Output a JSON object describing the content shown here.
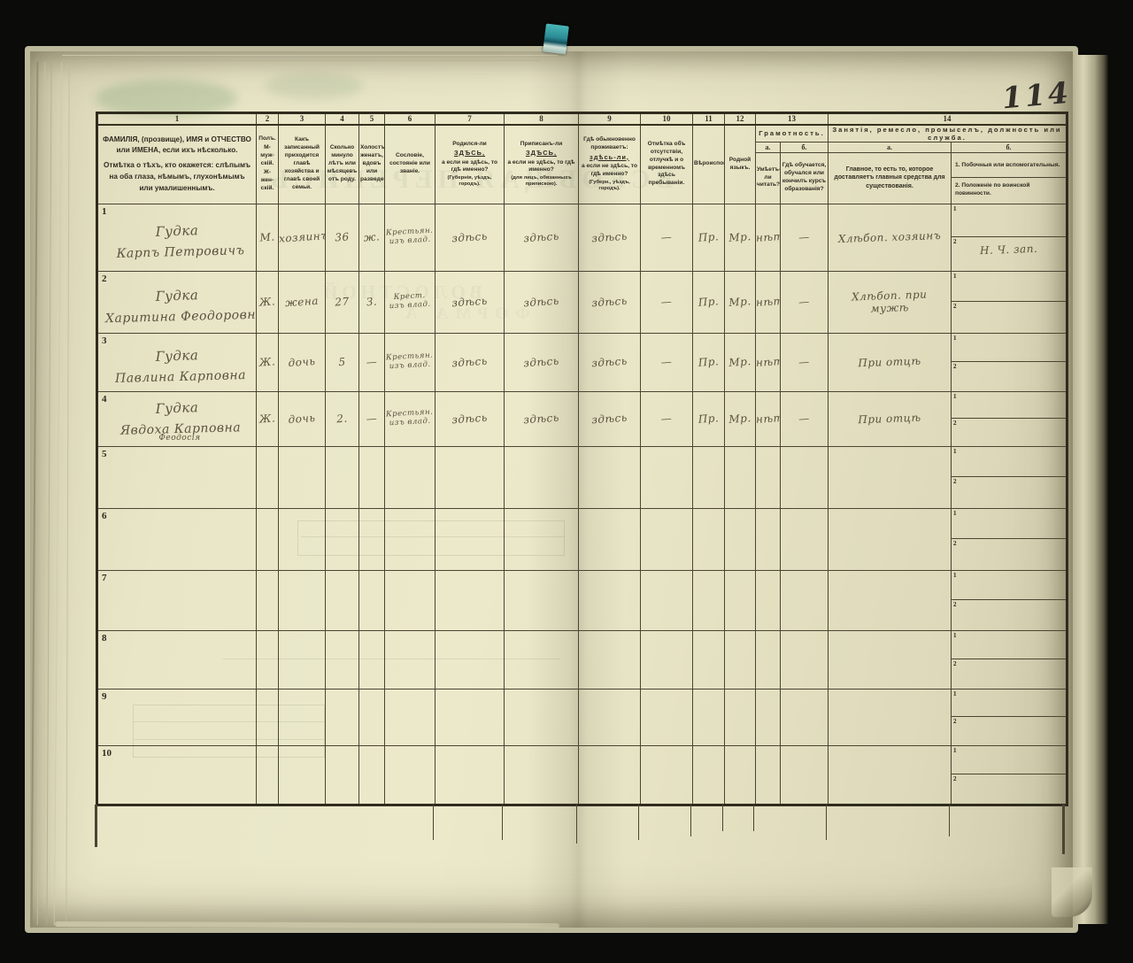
{
  "page": {
    "number": "114"
  },
  "bleedthrough": {
    "title": "ВСЕОБЩАЯ ПЕРЕПИСЬ",
    "line2": "ВОЛОСТНОЙ",
    "line3": "ФОРМА А"
  },
  "table": {
    "nums": [
      "1",
      "2",
      "3",
      "4",
      "5",
      "6",
      "7",
      "8",
      "9",
      "10",
      "11",
      "12",
      "13",
      "14"
    ],
    "subnum1": "1",
    "subnum2": "2",
    "hdr": {
      "c1_p1": "ФАМИЛІЯ, (прозвище), ИМЯ и ОТЧЕСТВО или ИМЕНА, если ихъ нѣсколько.",
      "c1_p2": "Отмѣтка о тѣхъ, кто окажется: слѣпымъ на оба глаза, нѣмымъ, глухонѣмымъ или умалишеннымъ.",
      "c2_1": "Полъ.",
      "c2_2": "М-муж-скій.",
      "c2_3": "Ж-жен-скій.",
      "c3": "Какъ записанный приходится главѣ хозяйства и главѣ своей семьи.",
      "c4": "Сколько минуло лѣтъ или мѣсяцевъ отъ роду.",
      "c5": "Холостъ, женатъ, вдовъ или разведенъ.",
      "c6": "Сословіе, состояніе или званіе.",
      "c7_pre": "Родился-ли",
      "c7_em": "ЗДѢСЬ,",
      "c7_mid": "а если не здѣсь, то гдѣ именно?",
      "c7_note": "(Губернія, уѣздъ, городъ).",
      "c8_pre": "Приписанъ-ли",
      "c8_em": "ЗДѢСЬ,",
      "c8_mid": "а если не здѣсь, то гдѣ именно?",
      "c8_note": "(для лицъ, обязанныхъ припискою).",
      "c9_pre": "Гдѣ обыкновенно проживаетъ:",
      "c9_em": "здѣсь-ли,",
      "c9_mid": "а если не здѣсь, то гдѣ именно?",
      "c9_note": "(Губерн., уѣздъ, городъ).",
      "c10": "Отмѣтка объ отсутствіи, отлучкѣ и о временномъ здѣсь пребываніи.",
      "c11": "Вѣроисповѣданіе.",
      "c12": "Родной языкъ.",
      "c13": "Грамотность.",
      "c13a_l": "а.",
      "c13b_l": "б.",
      "c13a": "Умѣетъ-ли читать?",
      "c13b": "Гдѣ обучается, обучался или кончилъ курсъ образованія?",
      "c14": "Занятія, ремесло, промыселъ, должность или служба.",
      "c14a_l": "а.",
      "c14b_l": "б.",
      "c14a": "Главное, то есть то, которое доставляетъ главныя средства для существованія.",
      "c14b_1": "1. Побочныя или вспомогательныя.",
      "c14b_2": "2. Положеніе по воинской повинности."
    },
    "rows": [
      {
        "n": "1",
        "surname": "Гудка",
        "name": "Карпъ Петровичъ",
        "name2": "",
        "sex": "М.",
        "relation": "хозяинъ",
        "age": "36",
        "marital": "ж.",
        "estate": "Крестьян. изъ влад.",
        "born": "здѣсь",
        "registered": "здѣсь",
        "resides": "здѣсь",
        "absence": "—",
        "religion": "Пр.",
        "language": "Мр.",
        "reads": "нѣт.",
        "educated": "—",
        "occupation": "Хлѣбоп. хозяинъ",
        "side1": "",
        "side2": "Н. Ч. зап."
      },
      {
        "n": "2",
        "surname": "Гудка",
        "name": "Харитина Феодоровна",
        "name2": "",
        "sex": "Ж.",
        "relation": "жена",
        "age": "27",
        "marital": "З.",
        "estate": "Крест. изъ влад.",
        "born": "здѣсь",
        "registered": "здѣсь",
        "resides": "здѣсь",
        "absence": "—",
        "religion": "Пр.",
        "language": "Мр.",
        "reads": "нѣт.",
        "educated": "—",
        "occupation": "Хлѣбоп. при мужѣ",
        "side1": "",
        "side2": ""
      },
      {
        "n": "3",
        "surname": "Гудка",
        "name": "Павлина Карповна",
        "name2": "",
        "sex": "Ж.",
        "relation": "дочь",
        "age": "5",
        "marital": "—",
        "estate": "Крестьян. изъ влад.",
        "born": "здѣсь",
        "registered": "здѣсь",
        "resides": "здѣсь",
        "absence": "—",
        "religion": "Пр.",
        "language": "Мр.",
        "reads": "нѣт.",
        "educated": "—",
        "occupation": "При отцѣ",
        "side1": "",
        "side2": ""
      },
      {
        "n": "4",
        "surname": "Гудка",
        "name": "Явдоха Карповна",
        "name2": "Феодосія",
        "sex": "Ж.",
        "relation": "дочь",
        "age": "2.",
        "marital": "—",
        "estate": "Крестьян. изъ влад.",
        "born": "здѣсь",
        "registered": "здѣсь",
        "resides": "здѣсь",
        "absence": "—",
        "religion": "Пр.",
        "language": "Мр.",
        "reads": "нѣт.",
        "educated": "—",
        "occupation": "При отцѣ",
        "side1": "",
        "side2": ""
      },
      {
        "n": "5",
        "surname": "",
        "name": "",
        "name2": "",
        "sex": "",
        "relation": "",
        "age": "",
        "marital": "",
        "estate": "",
        "born": "",
        "registered": "",
        "resides": "",
        "absence": "",
        "religion": "",
        "language": "",
        "reads": "",
        "educated": "",
        "occupation": "",
        "side1": "",
        "side2": ""
      },
      {
        "n": "6",
        "surname": "",
        "name": "",
        "name2": "",
        "sex": "",
        "relation": "",
        "age": "",
        "marital": "",
        "estate": "",
        "born": "",
        "registered": "",
        "resides": "",
        "absence": "",
        "religion": "",
        "language": "",
        "reads": "",
        "educated": "",
        "occupation": "",
        "side1": "",
        "side2": ""
      },
      {
        "n": "7",
        "surname": "",
        "name": "",
        "name2": "",
        "sex": "",
        "relation": "",
        "age": "",
        "marital": "",
        "estate": "",
        "born": "",
        "registered": "",
        "resides": "",
        "absence": "",
        "religion": "",
        "language": "",
        "reads": "",
        "educated": "",
        "occupation": "",
        "side1": "",
        "side2": ""
      },
      {
        "n": "8",
        "surname": "",
        "name": "",
        "name2": "",
        "sex": "",
        "relation": "",
        "age": "",
        "marital": "",
        "estate": "",
        "born": "",
        "registered": "",
        "resides": "",
        "absence": "",
        "religion": "",
        "language": "",
        "reads": "",
        "educated": "",
        "occupation": "",
        "side1": "",
        "side2": ""
      },
      {
        "n": "9",
        "surname": "",
        "name": "",
        "name2": "",
        "sex": "",
        "relation": "",
        "age": "",
        "marital": "",
        "estate": "",
        "born": "",
        "registered": "",
        "resides": "",
        "absence": "",
        "religion": "",
        "language": "",
        "reads": "",
        "educated": "",
        "occupation": "",
        "side1": "",
        "side2": ""
      },
      {
        "n": "10",
        "surname": "",
        "name": "",
        "name2": "",
        "sex": "",
        "relation": "",
        "age": "",
        "marital": "",
        "estate": "",
        "born": "",
        "registered": "",
        "resides": "",
        "absence": "",
        "religion": "",
        "language": "",
        "reads": "",
        "educated": "",
        "occupation": "",
        "side1": "",
        "side2": ""
      }
    ]
  }
}
